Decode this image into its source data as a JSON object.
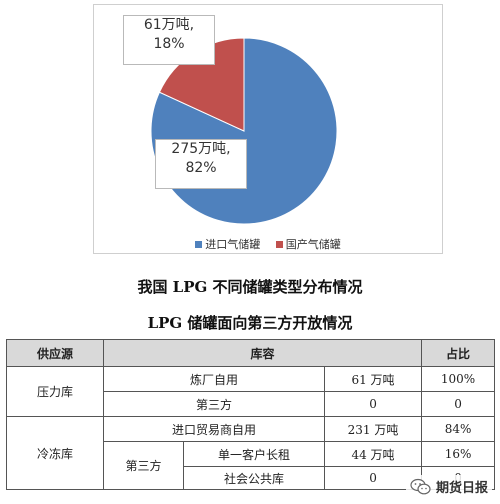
{
  "chart_data": {
    "type": "pie",
    "title": "",
    "slices": [
      {
        "name": "进口气储罐",
        "value": 275,
        "unit": "万吨",
        "value_label": "275万吨,",
        "percent_label": "82%",
        "color": "#4F81BD"
      },
      {
        "name": "国产气储罐",
        "value": 61,
        "unit": "万吨",
        "value_label": "61万吨,",
        "percent_label": "18%",
        "color": "#C0504D"
      }
    ],
    "legend_position": "bottom"
  },
  "captions": {
    "chart": "我国 LPG 不同储罐类型分布情况",
    "table": "LPG 储罐面向第三方开放情况"
  },
  "table": {
    "headers": {
      "source": "供应源",
      "capacity": "库容",
      "share": "占比"
    },
    "rows": {
      "pressure": {
        "label": "压力库",
        "r1_desc": "炼厂自用",
        "r1_val": "61 万吨",
        "r1_pct": "100%",
        "r2_desc": "第三方",
        "r2_val": "0",
        "r2_pct": "0"
      },
      "cold": {
        "label": "冷冻库",
        "r1_desc": "进口贸易商自用",
        "r1_val": "231 万吨",
        "r1_pct": "84%",
        "third": "第三方",
        "r2_desc": "单一客户长租",
        "r2_val": "44 万吨",
        "r2_pct": "16%",
        "r3_desc": "社会公共库",
        "r3_val": "0",
        "r3_pct": "0"
      }
    }
  },
  "watermark": {
    "text": "期货日报",
    "icon": "wechat-icon"
  }
}
